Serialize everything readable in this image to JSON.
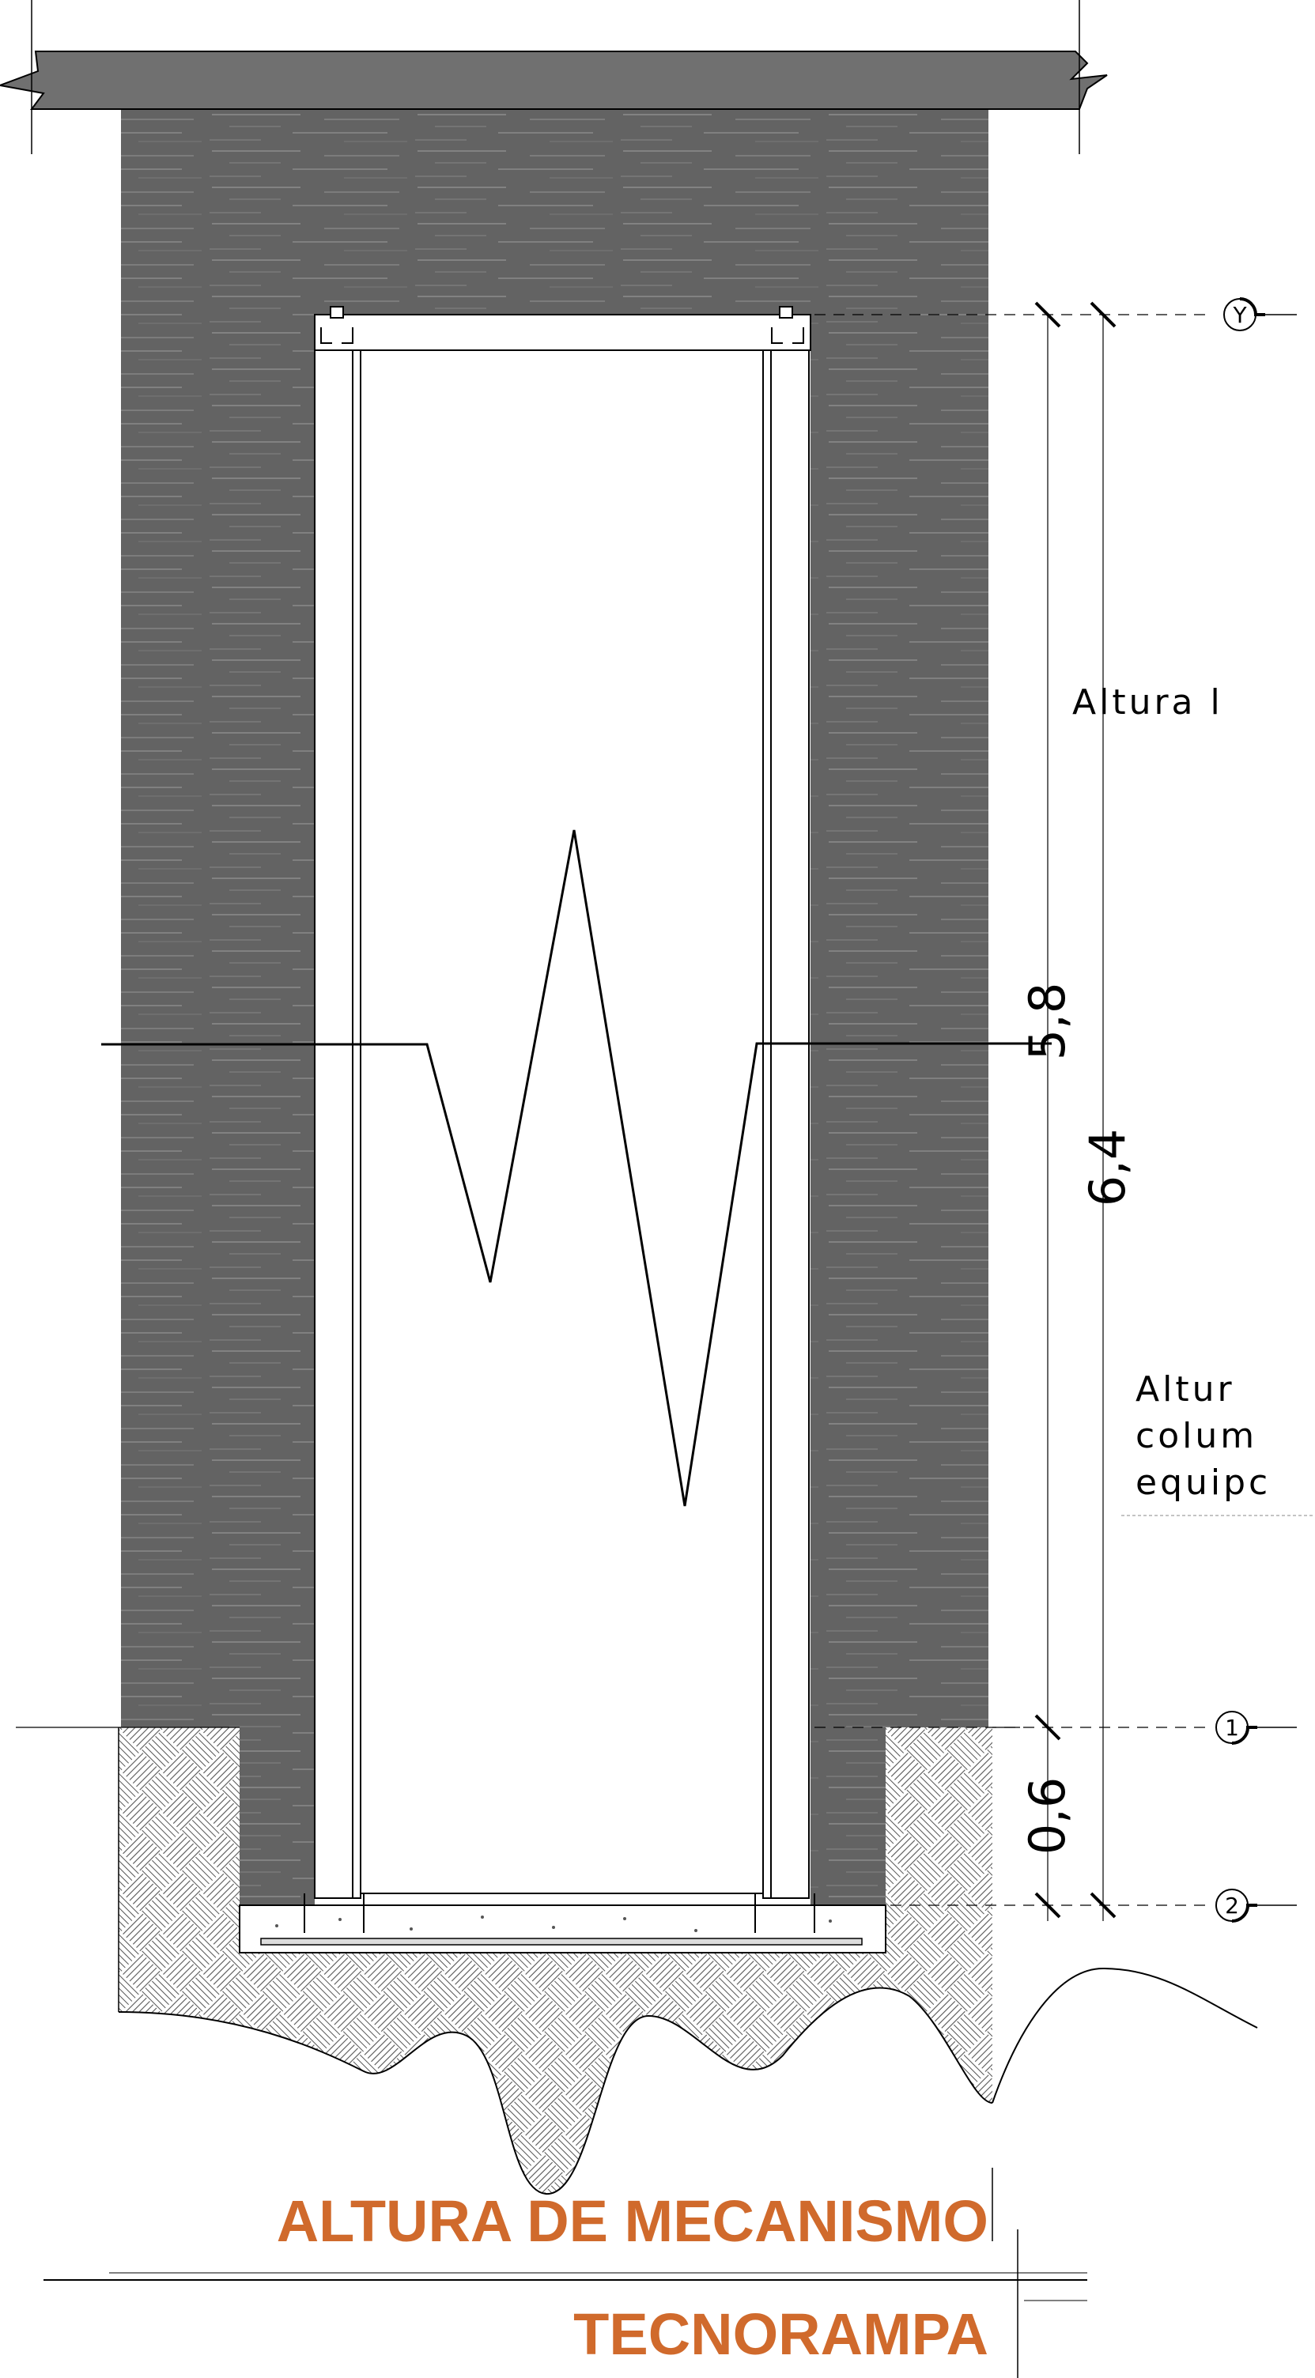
{
  "drawing": {
    "levels": [
      {
        "marker": "Y"
      },
      {
        "marker": "1"
      },
      {
        "marker": "2"
      }
    ],
    "dimensions": {
      "inner": "5,8",
      "overall": "6,4",
      "pit": "0,6"
    },
    "notes": {
      "top_note": "Altura l",
      "side_note_line1": "Altur",
      "side_note_line2": "colum",
      "side_note_line3": "equipc"
    },
    "title": "ALTURA DE MECANISMO",
    "subtitle": "TECNORAMPA",
    "colors": {
      "concrete": "#636363",
      "concrete_streak": "#8a8a8a",
      "title": "#d06a2c",
      "line": "#000000"
    }
  }
}
